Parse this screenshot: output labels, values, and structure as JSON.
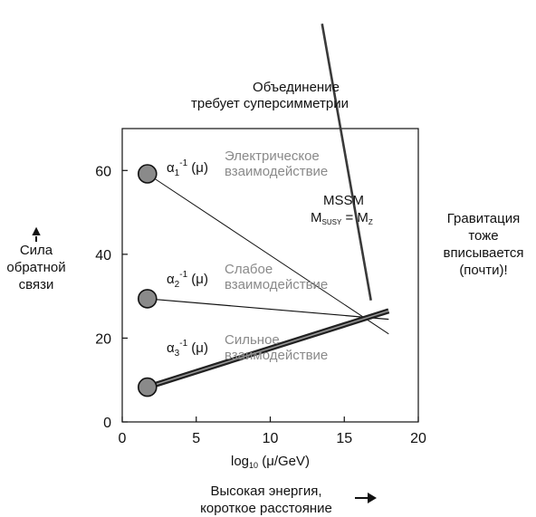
{
  "chart_data": {
    "type": "line",
    "xlabel": "log₁₀ (μ/GeV)",
    "ylabel": "Сила обратной связи",
    "xlim": [
      0,
      20
    ],
    "ylim": [
      0,
      70
    ],
    "x_ticks": [
      0,
      5,
      10,
      15,
      20
    ],
    "y_ticks": [
      0,
      20,
      40,
      60
    ],
    "grid": false,
    "series": [
      {
        "name": "α₁⁻¹ (μ)",
        "label": "Электрическое взаимодействие",
        "x": [
          1.7,
          18.0
        ],
        "y": [
          59.2,
          21.0
        ],
        "color": "#808080"
      },
      {
        "name": "α₂⁻¹ (μ)",
        "label": "Слабое взаимодействие",
        "x": [
          1.7,
          18.0
        ],
        "y": [
          29.4,
          24.5
        ],
        "color": "#808080"
      },
      {
        "name": "α₃⁻¹ (μ)",
        "label": "Сильное взаимодействие",
        "x": [
          1.7,
          18.0
        ],
        "y": [
          8.3,
          26.5
        ],
        "color": "#808080"
      },
      {
        "name": "MSSM M_SUSY = M_Z",
        "x": [
          13.5,
          16.8
        ],
        "y": [
          95,
          29
        ],
        "color": "#404040"
      }
    ],
    "annotations": {
      "unification_line1": "Объединение",
      "unification_line2": "требует суперсимметрии",
      "mssm_label": "MSSM",
      "mssm_formula": "M_SUSY = M_Z",
      "gravity_note": [
        "Гравитация",
        "тоже",
        "вписывается",
        "(почти)!"
      ]
    }
  },
  "y_axis_caption": [
    "Сила",
    "обратной",
    "связи"
  ],
  "x_axis_caption": [
    "Высокая энергия,",
    "короткое расстояние"
  ],
  "arrow_up_glyph": "↑",
  "arrow_right_glyph": "→"
}
